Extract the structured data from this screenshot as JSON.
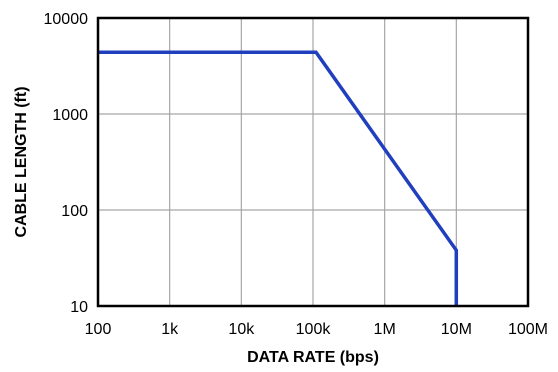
{
  "chart_data": {
    "type": "line",
    "title": "",
    "xlabel": "DATA RATE (bps)",
    "ylabel": "CABLE LENGTH (ft)",
    "xscale": "log",
    "yscale": "log",
    "xlim": [
      100,
      100000000
    ],
    "ylim": [
      10,
      10000
    ],
    "grid": true,
    "x_ticks": [
      {
        "value": 100,
        "label": "100"
      },
      {
        "value": 1000,
        "label": "1k"
      },
      {
        "value": 10000,
        "label": "10k"
      },
      {
        "value": 100000,
        "label": "100k"
      },
      {
        "value": 1000000,
        "label": "1M"
      },
      {
        "value": 10000000,
        "label": "10M"
      },
      {
        "value": 100000000,
        "label": "100M"
      }
    ],
    "y_ticks": [
      {
        "value": 10,
        "label": "10"
      },
      {
        "value": 100,
        "label": "100"
      },
      {
        "value": 1000,
        "label": "1000"
      },
      {
        "value": 10000,
        "label": "10000"
      }
    ],
    "series": [
      {
        "color": "#1f3fbf",
        "points": [
          {
            "x": 100,
            "y": 4400
          },
          {
            "x": 110000,
            "y": 4400
          },
          {
            "x": 10000000,
            "y": 38
          },
          {
            "x": 10000000,
            "y": 10
          }
        ]
      }
    ]
  }
}
